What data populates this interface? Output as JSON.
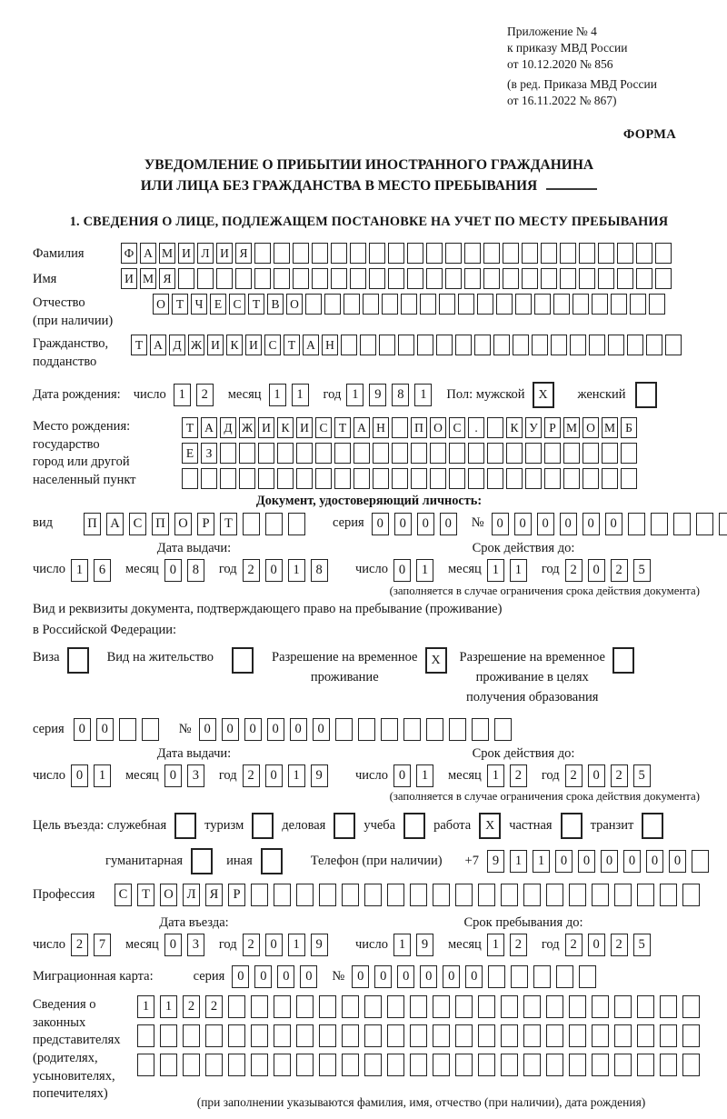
{
  "header_note": {
    "lines": [
      "Приложение № 4",
      "к приказу МВД России",
      "от 10.12.2020 № 856",
      "(в ред. Приказа МВД России",
      "от 16.11.2022 № 867)"
    ]
  },
  "form_label": "ФОРМА",
  "title": {
    "line1": "УВЕДОМЛЕНИЕ О ПРИБЫТИИ ИНОСТРАННОГО ГРАЖДАНИНА",
    "line2": "ИЛИ ЛИЦА БЕЗ ГРАЖДАНСТВА В МЕСТО ПРЕБЫВАНИЯ"
  },
  "section1_heading": "1. СВЕДЕНИЯ О ЛИЦЕ, ПОДЛЕЖАЩЕМ ПОСТАНОВКЕ НА УЧЕТ ПО МЕСТУ ПРЕБЫВАНИЯ",
  "surname": {
    "label": "Фамилия",
    "cells": {
      "total": 29,
      "value": "ФАМИЛИЯ"
    }
  },
  "name": {
    "label": "Имя",
    "cells": {
      "total": 29,
      "value": "ИМЯ"
    }
  },
  "patronymic": {
    "label1": "Отчество",
    "label2": "(при наличии)",
    "cells": {
      "total": 27,
      "value": "ОТЧЕСТВО"
    }
  },
  "citizenship": {
    "label1": "Гражданство,",
    "label2": "подданство",
    "cells": {
      "total": 29,
      "value": "ТАДЖИКИСТАН"
    }
  },
  "birth_date": {
    "label": "Дата рождения:",
    "day_label": "число",
    "day": {
      "total": 2,
      "value": "12"
    },
    "month_label": "месяц",
    "month": {
      "total": 2,
      "value": "11"
    },
    "year_label": "год",
    "year": {
      "total": 4,
      "value": "1981"
    },
    "sex_label": "Пол: мужской",
    "male_box": {
      "total": 1,
      "value": "X"
    },
    "female_label": "женский",
    "female_box": {
      "total": 1,
      "value": ""
    }
  },
  "birthplace": {
    "label1": "Место рождения:",
    "label2": "государство",
    "label3": "город или другой",
    "label4": "населенный пункт",
    "row1": {
      "total": 24,
      "value": "ТАДЖИКИСТАН ПОС. КУРМОМБ"
    },
    "row2": {
      "total": 24,
      "value": "ЕЗ"
    },
    "row3": {
      "total": 24,
      "value": ""
    }
  },
  "id_doc": {
    "heading": "Документ, удостоверяющий личность:",
    "kind_label": "вид",
    "kind": {
      "total": 10,
      "value": "ПАСПОРТ"
    },
    "series_label": "серия",
    "series": {
      "total": 4,
      "value": "0000"
    },
    "number_label": "№",
    "number": {
      "total": 11,
      "value": "000000"
    },
    "issue_heading": "Дата выдачи:",
    "issue": {
      "day_label": "число",
      "day": {
        "total": 2,
        "value": "16"
      },
      "month_label": "месяц",
      "month": {
        "total": 2,
        "value": "08"
      },
      "year_label": "год",
      "year": {
        "total": 4,
        "value": "2018"
      }
    },
    "valid_heading": "Срок действия до:",
    "valid": {
      "day_label": "число",
      "day": {
        "total": 2,
        "value": "01"
      },
      "month_label": "месяц",
      "month": {
        "total": 2,
        "value": "11"
      },
      "year_label": "год",
      "year": {
        "total": 4,
        "value": "2025"
      }
    },
    "note": "(заполняется в случае ограничения срока действия документа)"
  },
  "residence_doc": {
    "intro1": "Вид и реквизиты документа, подтверждающего право на пребывание (проживание)",
    "intro2": "в Российской Федерации:",
    "opt_visa": {
      "label": "Виза",
      "box": {
        "total": 1,
        "value": ""
      }
    },
    "opt_residence": {
      "label": "Вид на жительство",
      "box": {
        "total": 1,
        "value": ""
      }
    },
    "opt_temp": {
      "label": "Разрешение на временное\nпроживание",
      "box": {
        "total": 1,
        "value": "X"
      }
    },
    "opt_edu": {
      "label": "Разрешение на временное\nпроживание в целях\nполучения образования",
      "box": {
        "total": 1,
        "value": ""
      }
    },
    "series_label": "серия",
    "series": {
      "total": 4,
      "value": "00"
    },
    "number_label": "№",
    "number": {
      "total": 14,
      "value": "000000"
    },
    "issue_heading": "Дата выдачи:",
    "issue": {
      "day_label": "число",
      "day": {
        "total": 2,
        "value": "01"
      },
      "month_label": "месяц",
      "month": {
        "total": 2,
        "value": "03"
      },
      "year_label": "год",
      "year": {
        "total": 4,
        "value": "2019"
      }
    },
    "valid_heading": "Срок действия до:",
    "valid": {
      "day_label": "число",
      "day": {
        "total": 2,
        "value": "01"
      },
      "month_label": "месяц",
      "month": {
        "total": 2,
        "value": "12"
      },
      "year_label": "год",
      "year": {
        "total": 4,
        "value": "2025"
      }
    },
    "note": "(заполняется в случае ограничения срока действия документа)"
  },
  "purpose": {
    "label": "Цель въезда: служебная",
    "opt1": {
      "label": "туризм",
      "box": {
        "total": 1,
        "value": ""
      }
    },
    "box0": {
      "total": 1,
      "value": ""
    },
    "opt2": {
      "label": "деловая",
      "box": {
        "total": 1,
        "value": ""
      }
    },
    "opt3": {
      "label": "учеба",
      "box": {
        "total": 1,
        "value": ""
      }
    },
    "opt4": {
      "label": "работа",
      "box": {
        "total": 1,
        "value": "X"
      }
    },
    "opt5": {
      "label": "частная",
      "box": {
        "total": 1,
        "value": ""
      }
    },
    "opt6": {
      "label": "транзит",
      "box": {
        "total": 1,
        "value": ""
      }
    },
    "opt7": {
      "label": "гуманитарная",
      "box": {
        "total": 1,
        "value": ""
      }
    },
    "opt8": {
      "label": "иная",
      "box": {
        "total": 1,
        "value": ""
      }
    },
    "phone_label": "Телефон (при наличии)",
    "phone_prefix": "+7",
    "phone": {
      "total": 10,
      "value": "911000000"
    }
  },
  "profession": {
    "label": "Профессия",
    "cells": {
      "total": 26,
      "value": "СТОЛЯР"
    }
  },
  "entry": {
    "issue_heading": "Дата въезда:",
    "issue": {
      "day_label": "число",
      "day": {
        "total": 2,
        "value": "27"
      },
      "month_label": "месяц",
      "month": {
        "total": 2,
        "value": "03"
      },
      "year_label": "год",
      "year": {
        "total": 4,
        "value": "2019"
      }
    },
    "valid_heading": "Срок пребывания до:",
    "valid": {
      "day_label": "число",
      "day": {
        "total": 2,
        "value": "19"
      },
      "month_label": "месяц",
      "month": {
        "total": 2,
        "value": "12"
      },
      "year_label": "год",
      "year": {
        "total": 4,
        "value": "2025"
      }
    }
  },
  "migration_card": {
    "label": "Миграционная карта:",
    "series_label": "серия",
    "series": {
      "total": 4,
      "value": "0000"
    },
    "number_label": "№",
    "number": {
      "total": 11,
      "value": "000000"
    }
  },
  "representatives": {
    "label1": "Сведения о",
    "label2": "законных",
    "label3": "представителях",
    "label4": "(родителях,",
    "label5": "усыновителях,",
    "label6": "попечителях)",
    "row1": {
      "total": 25,
      "value": "1122"
    },
    "row2": {
      "total": 25,
      "value": ""
    },
    "row3": {
      "total": 25,
      "value": ""
    },
    "note": "(при заполнении указываются фамилия, имя, отчество (при наличии), дата рождения)"
  }
}
